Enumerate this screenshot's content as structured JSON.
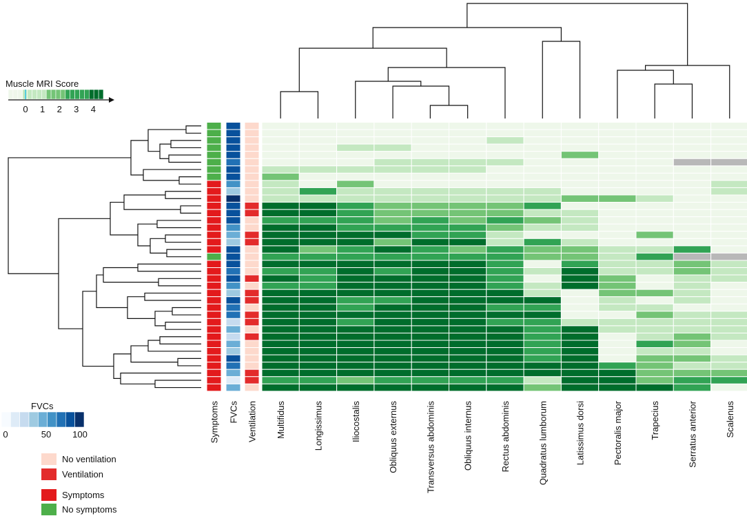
{
  "chart_data": {
    "type": "heatmap",
    "title": "",
    "muscles": [
      "Multifidus",
      "Longissimus",
      "Iliocostalis",
      "Obliquus externus",
      "Transversus abdominis",
      "Obliquus internus",
      "Rectus abdominis",
      "Quadratus lumborum",
      "Latissimus dorsi",
      "Pectoralis major",
      "Trapecius",
      "Serratus anterior",
      "Scalenus"
    ],
    "annotation_columns": [
      "Symptoms",
      "FVCs",
      "Ventilation"
    ],
    "symptoms": [
      0,
      0,
      0,
      0,
      0,
      0,
      0,
      0,
      1,
      1,
      1,
      1,
      1,
      1,
      1,
      1,
      1,
      1,
      0,
      1,
      1,
      1,
      1,
      1,
      1,
      1,
      1,
      1,
      1,
      1,
      1,
      1,
      1,
      1,
      1,
      1,
      1
    ],
    "fvc": [
      92,
      90,
      88,
      85,
      82,
      80,
      93,
      85,
      60,
      40,
      95,
      85,
      90,
      85,
      65,
      55,
      35,
      85,
      90,
      92,
      70,
      85,
      65,
      40,
      88,
      75,
      72,
      25,
      55,
      20,
      50,
      40,
      85,
      75,
      50,
      15,
      50
    ],
    "ventilation": [
      0,
      0,
      0,
      0,
      0,
      0,
      0,
      0,
      0,
      0,
      0,
      1,
      1,
      0,
      0,
      1,
      1,
      0,
      0,
      0,
      0,
      1,
      0,
      1,
      1,
      0,
      1,
      1,
      0,
      1,
      0,
      0,
      0,
      0,
      1,
      1,
      0
    ],
    "scores": [
      [
        0,
        0,
        0,
        0,
        0,
        0,
        0,
        0,
        0,
        0,
        0,
        0,
        0
      ],
      [
        0,
        0,
        0,
        0,
        0,
        0,
        0,
        0,
        0,
        0,
        0,
        0,
        0
      ],
      [
        0,
        0,
        0,
        0,
        0,
        0,
        1,
        0,
        0,
        0,
        0,
        0,
        0
      ],
      [
        0,
        0,
        1,
        1,
        0,
        0,
        0,
        0,
        0,
        0,
        0,
        0,
        0
      ],
      [
        0,
        0,
        0,
        0,
        0,
        0,
        0,
        0,
        2,
        0,
        0,
        0,
        0
      ],
      [
        0,
        0,
        0,
        1,
        1,
        1,
        1,
        0,
        0,
        0,
        0,
        null,
        null
      ],
      [
        1,
        1,
        1,
        1,
        1,
        1,
        0,
        0,
        0,
        0,
        0,
        0,
        0
      ],
      [
        2,
        0,
        0,
        0,
        0,
        0,
        0,
        0,
        0,
        0,
        0,
        0,
        0
      ],
      [
        1,
        0,
        2,
        0,
        0,
        0,
        0,
        0,
        0,
        0,
        0,
        0,
        1
      ],
      [
        1,
        3,
        1,
        1,
        1,
        1,
        1,
        1,
        0,
        0,
        0,
        0,
        1
      ],
      [
        1,
        1,
        1,
        1,
        1,
        1,
        1,
        1,
        2,
        2,
        1,
        0,
        0
      ],
      [
        4,
        4,
        3,
        2,
        2,
        2,
        2,
        3,
        0,
        0,
        0,
        0,
        0
      ],
      [
        4,
        4,
        3,
        2,
        2,
        2,
        2,
        1,
        1,
        0,
        0,
        0,
        0
      ],
      [
        3,
        3,
        3,
        2,
        3,
        2,
        3,
        2,
        1,
        0,
        0,
        0,
        0
      ],
      [
        4,
        4,
        3,
        3,
        3,
        3,
        2,
        1,
        1,
        0,
        0,
        0,
        0
      ],
      [
        4,
        4,
        4,
        4,
        3,
        3,
        1,
        0,
        0,
        0,
        2,
        0,
        0
      ],
      [
        4,
        4,
        4,
        2,
        4,
        4,
        1,
        3,
        1,
        0,
        0,
        0,
        0
      ],
      [
        4,
        2,
        3,
        4,
        3,
        2,
        3,
        2,
        2,
        1,
        1,
        3,
        0
      ],
      [
        3,
        3,
        3,
        3,
        3,
        3,
        3,
        2,
        2,
        1,
        3,
        null,
        null
      ],
      [
        4,
        4,
        4,
        4,
        4,
        4,
        3,
        0,
        3,
        1,
        1,
        2,
        1
      ],
      [
        3,
        3,
        4,
        3,
        4,
        4,
        3,
        1,
        4,
        1,
        1,
        2,
        1
      ],
      [
        4,
        3,
        4,
        4,
        4,
        4,
        3,
        0,
        4,
        2,
        0,
        1,
        1
      ],
      [
        3,
        3,
        4,
        4,
        4,
        4,
        3,
        1,
        4,
        2,
        0,
        1,
        0
      ],
      [
        4,
        4,
        4,
        4,
        4,
        4,
        4,
        1,
        0,
        2,
        2,
        1,
        0
      ],
      [
        4,
        4,
        3,
        3,
        4,
        4,
        4,
        4,
        0,
        1,
        0,
        1,
        0
      ],
      [
        4,
        4,
        3,
        4,
        4,
        4,
        3,
        3,
        0,
        1,
        1,
        0,
        0
      ],
      [
        4,
        4,
        4,
        4,
        4,
        4,
        4,
        4,
        0,
        0,
        2,
        1,
        1
      ],
      [
        4,
        4,
        3,
        4,
        4,
        4,
        3,
        3,
        1,
        1,
        1,
        1,
        1
      ],
      [
        4,
        4,
        4,
        4,
        4,
        4,
        4,
        3,
        4,
        1,
        1,
        1,
        1
      ],
      [
        4,
        4,
        4,
        4,
        4,
        4,
        4,
        3,
        4,
        0,
        1,
        2,
        1
      ],
      [
        4,
        4,
        4,
        4,
        4,
        4,
        4,
        3,
        4,
        0,
        3,
        2,
        0
      ],
      [
        4,
        4,
        4,
        4,
        4,
        4,
        4,
        3,
        4,
        0,
        1,
        1,
        0
      ],
      [
        4,
        4,
        4,
        4,
        4,
        4,
        4,
        3,
        4,
        0,
        2,
        2,
        1
      ],
      [
        4,
        4,
        4,
        4,
        4,
        4,
        4,
        4,
        4,
        3,
        2,
        1,
        1
      ],
      [
        4,
        4,
        4,
        4,
        4,
        4,
        4,
        4,
        4,
        4,
        2,
        2,
        2
      ],
      [
        3,
        3,
        2,
        3,
        3,
        3,
        3,
        1,
        4,
        4,
        2,
        3,
        3
      ],
      [
        4,
        4,
        4,
        4,
        4,
        4,
        4,
        2,
        4,
        4,
        4,
        3,
        0
      ]
    ],
    "score_legend": {
      "title": "Muscle MRI Score",
      "ticks": [
        "0",
        "1",
        "2",
        "3",
        "4"
      ],
      "range": [
        0,
        4
      ]
    },
    "fvc_legend": {
      "title": "FVCs",
      "ticks": [
        "0",
        "50",
        "100"
      ],
      "range": [
        0,
        100
      ]
    },
    "ventilation_legend": [
      {
        "label": "No ventilation",
        "color": "#fdd9cc"
      },
      {
        "label": "Ventilation",
        "color": "#e32b2b"
      }
    ],
    "symptoms_legend": [
      {
        "label": "Symptoms",
        "color": "#e31a1c"
      },
      {
        "label": "No symptoms",
        "color": "#4daf4a"
      }
    ],
    "colors": {
      "score": [
        "#eef7ea",
        "#c4e8c1",
        "#74c476",
        "#31a354",
        "#006d2c"
      ],
      "fvc": [
        "#f7fbff",
        "#deebf7",
        "#c6dbef",
        "#9ecae1",
        "#6baed6",
        "#4292c6",
        "#2171b5",
        "#08519c",
        "#08306b"
      ],
      "missing": "#b8b8b8",
      "symptoms": "#e31a1c",
      "no_symptoms": "#4daf4a",
      "ventilation": "#e32b2b",
      "no_ventilation": "#fdd9cc"
    }
  }
}
